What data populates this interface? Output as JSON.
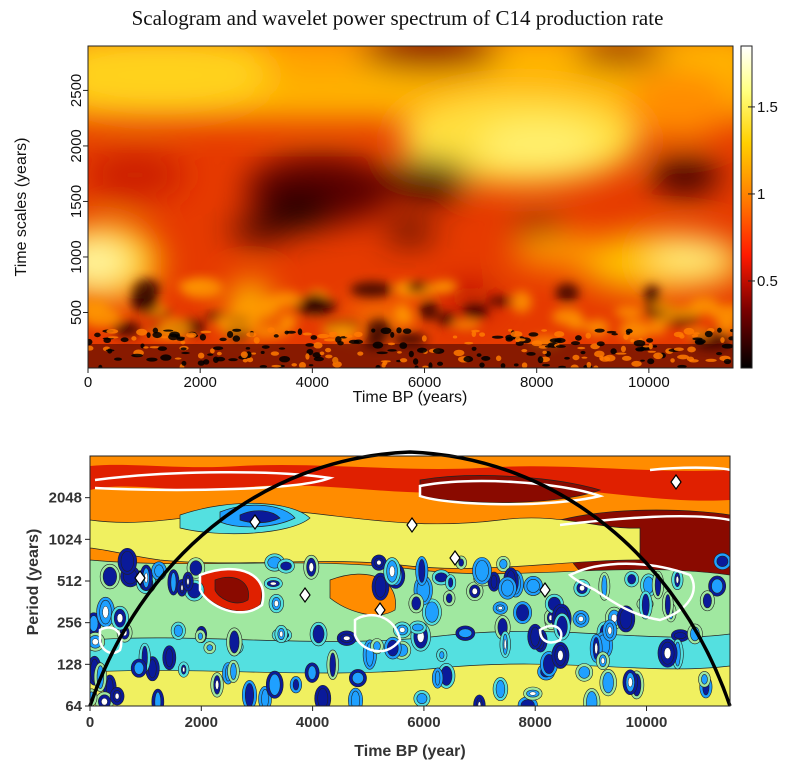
{
  "figure": {
    "title": "Scalogram and wavelet power spectrum of C14 production rate"
  },
  "chart_data": [
    {
      "type": "heatmap",
      "name": "scalogram",
      "xlabel": "Time BP (years)",
      "ylabel": "Time scales (years)",
      "xlim": [
        0,
        11500
      ],
      "ylim": [
        0,
        2900
      ],
      "xticks": [
        "0",
        "2000",
        "4000",
        "6000",
        "8000",
        "10000"
      ],
      "xtick_values": [
        0,
        2000,
        4000,
        6000,
        8000,
        10000
      ],
      "yticks": [
        "500",
        "1000",
        "1500",
        "2000",
        "2500"
      ],
      "ytick_values": [
        500,
        1000,
        1500,
        2000,
        2500
      ],
      "colorbar": {
        "ticks": [
          "0.5",
          "1",
          "1.5"
        ],
        "tick_values": [
          0.5,
          1.0,
          1.5
        ],
        "range": [
          0,
          1.85
        ],
        "colormap": [
          "#000000",
          "#7a0000",
          "#ff1a00",
          "#ff7a00",
          "#ffd000",
          "#ffff80",
          "#ffffff"
        ]
      }
    },
    {
      "type": "heatmap",
      "name": "wavelet power spectrum",
      "xlabel": "Time BP (year)",
      "ylabel": "Period (years)",
      "xlim": [
        0,
        11500
      ],
      "ylim": [
        64,
        4096
      ],
      "yscale": "log2",
      "xticks": [
        "0",
        "2000",
        "4000",
        "6000",
        "8000",
        "10000"
      ],
      "xtick_values": [
        0,
        2000,
        4000,
        6000,
        8000,
        10000
      ],
      "yticks": [
        "64",
        "128",
        "256",
        "512",
        "1024",
        "2048"
      ],
      "ytick_values": [
        64,
        128,
        256,
        512,
        1024,
        2048
      ],
      "palette": [
        "#0a1a9a",
        "#1fa0ff",
        "#54e0e0",
        "#a0e8a0",
        "#f0f060",
        "#ffcc00",
        "#ff8c00",
        "#e02000",
        "#8a0a00"
      ],
      "cone_of_influence": true,
      "significance_contours": "white"
    }
  ]
}
